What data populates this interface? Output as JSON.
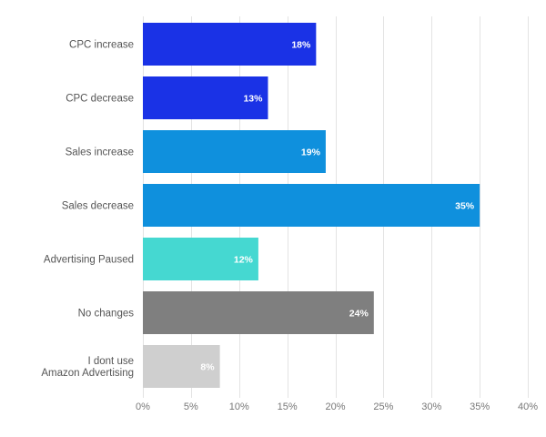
{
  "chart_data": {
    "type": "bar",
    "orientation": "horizontal",
    "categories": [
      [
        "CPC increase"
      ],
      [
        "CPC decrease"
      ],
      [
        "Sales increase"
      ],
      [
        "Sales decrease"
      ],
      [
        "Advertising Paused"
      ],
      [
        "No changes"
      ],
      [
        "I dont use",
        "Amazon Advertising"
      ]
    ],
    "values": [
      18,
      13,
      19,
      35,
      12,
      24,
      8
    ],
    "data_labels": [
      "18%",
      "13%",
      "19%",
      "35%",
      "12%",
      "24%",
      "8%"
    ],
    "colors": [
      "#1a32e6",
      "#1a32e6",
      "#0f90dd",
      "#0f90dd",
      "#45d8d1",
      "#7f7f7f",
      "#cfcfcf"
    ],
    "xlim": [
      0,
      40
    ],
    "x_ticks": [
      0,
      5,
      10,
      15,
      20,
      25,
      30,
      35,
      40
    ],
    "x_tick_labels": [
      "0%",
      "5%",
      "10%",
      "15%",
      "20%",
      "25%",
      "30%",
      "35%",
      "40%"
    ],
    "title": "",
    "xlabel": "",
    "ylabel": "",
    "grid": "vertical",
    "legend": "none"
  }
}
